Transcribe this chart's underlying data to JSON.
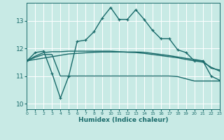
{
  "xlabel": "Humidex (Indice chaleur)",
  "xlim": [
    0,
    23
  ],
  "ylim": [
    9.8,
    13.65
  ],
  "yticks": [
    10,
    11,
    12,
    13
  ],
  "xticks": [
    0,
    1,
    2,
    3,
    4,
    5,
    6,
    7,
    8,
    9,
    10,
    11,
    12,
    13,
    14,
    15,
    16,
    17,
    18,
    19,
    20,
    21,
    22,
    23
  ],
  "bg_color": "#c8eae5",
  "line_color": "#1a6b6b",
  "grid_color": "#ffffff",
  "grid_minor_color": "#e8d8d8",
  "series": [
    {
      "x": [
        0,
        1,
        2,
        3,
        4,
        5,
        6,
        7,
        8,
        9,
        10,
        11,
        12,
        13,
        14,
        15,
        16,
        17,
        18,
        19,
        20,
        21,
        22,
        23
      ],
      "y": [
        11.55,
        11.85,
        11.9,
        11.1,
        10.2,
        11.0,
        12.25,
        12.3,
        12.6,
        13.1,
        13.48,
        13.05,
        13.05,
        13.4,
        13.05,
        12.65,
        12.35,
        12.35,
        11.95,
        11.85,
        11.55,
        11.55,
        11.0,
        10.85
      ],
      "marker": "+",
      "lw": 1.0
    },
    {
      "x": [
        0,
        1,
        2,
        3,
        4,
        5,
        6,
        7,
        8,
        9,
        10,
        11,
        12,
        13,
        14,
        15,
        16,
        17,
        18,
        19,
        20,
        21,
        22,
        23
      ],
      "y": [
        11.55,
        11.72,
        11.85,
        11.88,
        11.88,
        11.9,
        11.9,
        11.9,
        11.9,
        11.9,
        11.9,
        11.88,
        11.86,
        11.85,
        11.82,
        11.78,
        11.74,
        11.7,
        11.66,
        11.6,
        11.55,
        11.5,
        11.32,
        11.18
      ],
      "marker": null,
      "lw": 1.0
    },
    {
      "x": [
        0,
        1,
        2,
        3,
        4,
        5,
        6,
        7,
        8,
        9,
        10,
        11,
        12,
        13,
        14,
        15,
        16,
        17,
        18,
        19,
        20,
        21,
        22,
        23
      ],
      "y": [
        11.55,
        11.68,
        11.78,
        11.78,
        11.0,
        11.0,
        11.0,
        11.0,
        11.0,
        11.0,
        11.0,
        11.0,
        11.0,
        11.0,
        11.0,
        11.0,
        11.0,
        11.0,
        10.98,
        10.9,
        10.82,
        10.82,
        10.82,
        10.82
      ],
      "marker": null,
      "lw": 1.0
    },
    {
      "x": [
        0,
        1,
        2,
        3,
        4,
        5,
        6,
        7,
        8,
        9,
        10,
        11,
        12,
        13,
        14,
        15,
        16,
        17,
        18,
        19,
        20,
        21,
        22,
        23
      ],
      "y": [
        11.55,
        11.6,
        11.65,
        11.7,
        11.75,
        11.8,
        11.82,
        11.84,
        11.86,
        11.87,
        11.87,
        11.87,
        11.87,
        11.87,
        11.86,
        11.82,
        11.78,
        11.74,
        11.69,
        11.64,
        11.6,
        11.55,
        11.28,
        11.22
      ],
      "marker": null,
      "lw": 1.0
    }
  ]
}
